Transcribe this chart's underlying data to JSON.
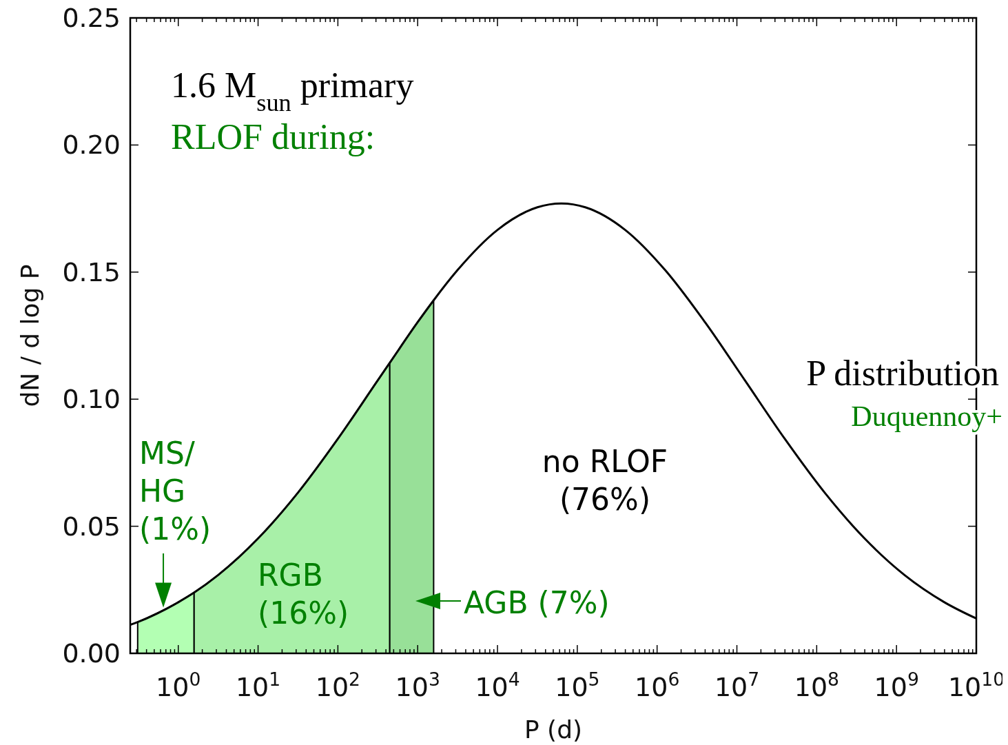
{
  "chart_data": {
    "type": "line",
    "xlabel": "P (d)",
    "ylabel": "dN / d log P",
    "log": "x",
    "xlim": [
      0.25,
      10000000000.0
    ],
    "ylim": [
      0,
      0.25
    ],
    "xticks": [
      {
        "value": 0.3,
        "label": null
      },
      {
        "value": 0.4,
        "label": null
      },
      {
        "value": 0.5,
        "label": null
      },
      {
        "value": 0.6,
        "label": null
      },
      {
        "value": 0.7,
        "label": null
      },
      {
        "value": 0.8,
        "label": null
      },
      {
        "value": 0.9,
        "label": null
      },
      {
        "value": 1,
        "label": "10$^{0}$"
      },
      {
        "value": 2,
        "label": null
      },
      {
        "value": 3,
        "label": null
      },
      {
        "value": 4,
        "label": null
      },
      {
        "value": 5,
        "label": null
      },
      {
        "value": 6,
        "label": null
      },
      {
        "value": 7,
        "label": null
      },
      {
        "value": 8,
        "label": null
      },
      {
        "value": 9,
        "label": null
      },
      {
        "value": 10,
        "label": "10$^{1}$"
      },
      {
        "value": 20,
        "label": null
      },
      {
        "value": 30,
        "label": null
      },
      {
        "value": 40,
        "label": null
      },
      {
        "value": 50,
        "label": null
      },
      {
        "value": 60,
        "label": null
      },
      {
        "value": 70,
        "label": null
      },
      {
        "value": 80,
        "label": null
      },
      {
        "value": 90,
        "label": null
      },
      {
        "value": 100,
        "label": "10$^{2}$"
      },
      {
        "value": 200,
        "label": null
      },
      {
        "value": 300,
        "label": null
      },
      {
        "value": 400,
        "label": null
      },
      {
        "value": 500,
        "label": null
      },
      {
        "value": 600,
        "label": null
      },
      {
        "value": 700,
        "label": null
      },
      {
        "value": 800,
        "label": null
      },
      {
        "value": 900,
        "label": null
      },
      {
        "value": 1000,
        "label": "10$^{3}$"
      },
      {
        "value": 2000.0,
        "label": null
      },
      {
        "value": 3000.0,
        "label": null
      },
      {
        "value": 4000.0,
        "label": null
      },
      {
        "value": 5000.0,
        "label": null
      },
      {
        "value": 6000.0,
        "label": null
      },
      {
        "value": 7000.0,
        "label": null
      },
      {
        "value": 8000.0,
        "label": null
      },
      {
        "value": 9000.0,
        "label": null
      },
      {
        "value": 10000.0,
        "label": "10$^{4}$"
      },
      {
        "value": 20000.0,
        "label": null
      },
      {
        "value": 30000.0,
        "label": null
      },
      {
        "value": 40000.0,
        "label": null
      },
      {
        "value": 50000.0,
        "label": null
      },
      {
        "value": 60000.0,
        "label": null
      },
      {
        "value": 70000.0,
        "label": null
      },
      {
        "value": 80000.0,
        "label": null
      },
      {
        "value": 90000.0,
        "label": null
      },
      {
        "value": 100000.0,
        "label": "10$^{5}$"
      },
      {
        "value": 200000.0,
        "label": null
      },
      {
        "value": 300000.0,
        "label": null
      },
      {
        "value": 400000.0,
        "label": null
      },
      {
        "value": 500000.0,
        "label": null
      },
      {
        "value": 600000.0,
        "label": null
      },
      {
        "value": 700000.0,
        "label": null
      },
      {
        "value": 800000.0,
        "label": null
      },
      {
        "value": 900000.0,
        "label": null
      },
      {
        "value": 1000000.0,
        "label": "10$^{6}$"
      },
      {
        "value": 2000000.0,
        "label": null
      },
      {
        "value": 3000000.0,
        "label": null
      },
      {
        "value": 4000000.0,
        "label": null
      },
      {
        "value": 5000000.0,
        "label": null
      },
      {
        "value": 6000000.0,
        "label": null
      },
      {
        "value": 7000000.0,
        "label": null
      },
      {
        "value": 8000000.0,
        "label": null
      },
      {
        "value": 9000000.0,
        "label": null
      },
      {
        "value": 10000000.0,
        "label": "10$^{7}$"
      },
      {
        "value": 20000000.0,
        "label": null
      },
      {
        "value": 30000000.0,
        "label": null
      },
      {
        "value": 40000000.0,
        "label": null
      },
      {
        "value": 50000000.0,
        "label": null
      },
      {
        "value": 60000000.0,
        "label": null
      },
      {
        "value": 70000000.0,
        "label": null
      },
      {
        "value": 80000000.0,
        "label": null
      },
      {
        "value": 90000000.0,
        "label": null
      },
      {
        "value": 100000000.0,
        "label": "10$^{8}$"
      },
      {
        "value": 200000000.0,
        "label": null
      },
      {
        "value": 300000000.0,
        "label": null
      },
      {
        "value": 400000000.0,
        "label": null
      },
      {
        "value": 500000000.0,
        "label": null
      },
      {
        "value": 600000000.0,
        "label": null
      },
      {
        "value": 700000000.0,
        "label": null
      },
      {
        "value": 800000000.0,
        "label": null
      },
      {
        "value": 900000000.0,
        "label": null
      },
      {
        "value": 1000000000.0,
        "label": "10$^{9}$"
      },
      {
        "value": 2000000000.0,
        "label": null
      },
      {
        "value": 3000000000.0,
        "label": null
      },
      {
        "value": 4000000000.0,
        "label": null
      },
      {
        "value": 5000000000.0,
        "label": null
      },
      {
        "value": 6000000000.0,
        "label": null
      },
      {
        "value": 7000000000.0,
        "label": null
      },
      {
        "value": 8000000000.0,
        "label": null
      },
      {
        "value": 9000000000.0,
        "label": null
      },
      {
        "value": 10000000000.0,
        "label": "10$^{10}$"
      }
    ],
    "yticks": [
      {
        "value": 0,
        "label": "0.00"
      },
      {
        "value": 0.05,
        "label": "0.05"
      },
      {
        "value": 0.1,
        "label": "0.10"
      },
      {
        "value": 0.15,
        "label": "0.15"
      },
      {
        "value": 0.2,
        "label": "0.20"
      },
      {
        "value": 0.25,
        "label": "0.25"
      }
    ],
    "series": [
      {
        "type": "area",
        "color": "#b3ffb3",
        "x": [
          0.31,
          1,
          1.58
        ],
        "values": [
          0.0123,
          0.0201,
          0.0239
        ]
      },
      {
        "type": "area",
        "color": "#a8f0a8",
        "x": [
          1.58,
          3.16,
          10,
          31.6,
          100,
          316,
          447
        ],
        "values": [
          0.0239,
          0.0308,
          0.0452,
          0.0632,
          0.0844,
          0.1074,
          0.1143
        ]
      },
      {
        "type": "area",
        "color": "#98e098",
        "x": [
          447,
          1000,
          1585
        ],
        "values": [
          0.1143,
          0.1303,
          0.1389
        ]
      },
      {
        "color": "#000000",
        "x": [
          0.25,
          0.31,
          1,
          1.58,
          3.16,
          10,
          31.6,
          100,
          316,
          447,
          1000,
          1585,
          3162,
          10000,
          31623,
          63096,
          125893,
          398107,
          1260000,
          3980000,
          12600000,
          39800000,
          126000000,
          398000000,
          1260000000,
          3980000000,
          10000000000
        ],
        "values": [
          0.0112,
          0.0123,
          0.0201,
          0.0239,
          0.0308,
          0.0452,
          0.0632,
          0.0844,
          0.1074,
          0.1143,
          0.1303,
          0.1389,
          0.1508,
          0.1666,
          0.1755,
          0.177,
          0.1755,
          0.1666,
          0.1508,
          0.1303,
          0.1074,
          0.0844,
          0.0632,
          0.0452,
          0.0308,
          0.0201,
          0.0137
        ]
      }
    ],
    "grid": false,
    "marker": "none",
    "line_style": "solid",
    "annotations": [
      "1.6 M$_{sun}$ primary",
      "RLOF during:",
      {
        "text": "MS/\nHG\n(1%)",
        "x": 0.65,
        "y": 0.018
      },
      "RGB\n(16%)",
      "AGB (7%)",
      "no RLOF\n(76%)",
      "P distribution",
      "Duquennoy+"
    ]
  }
}
